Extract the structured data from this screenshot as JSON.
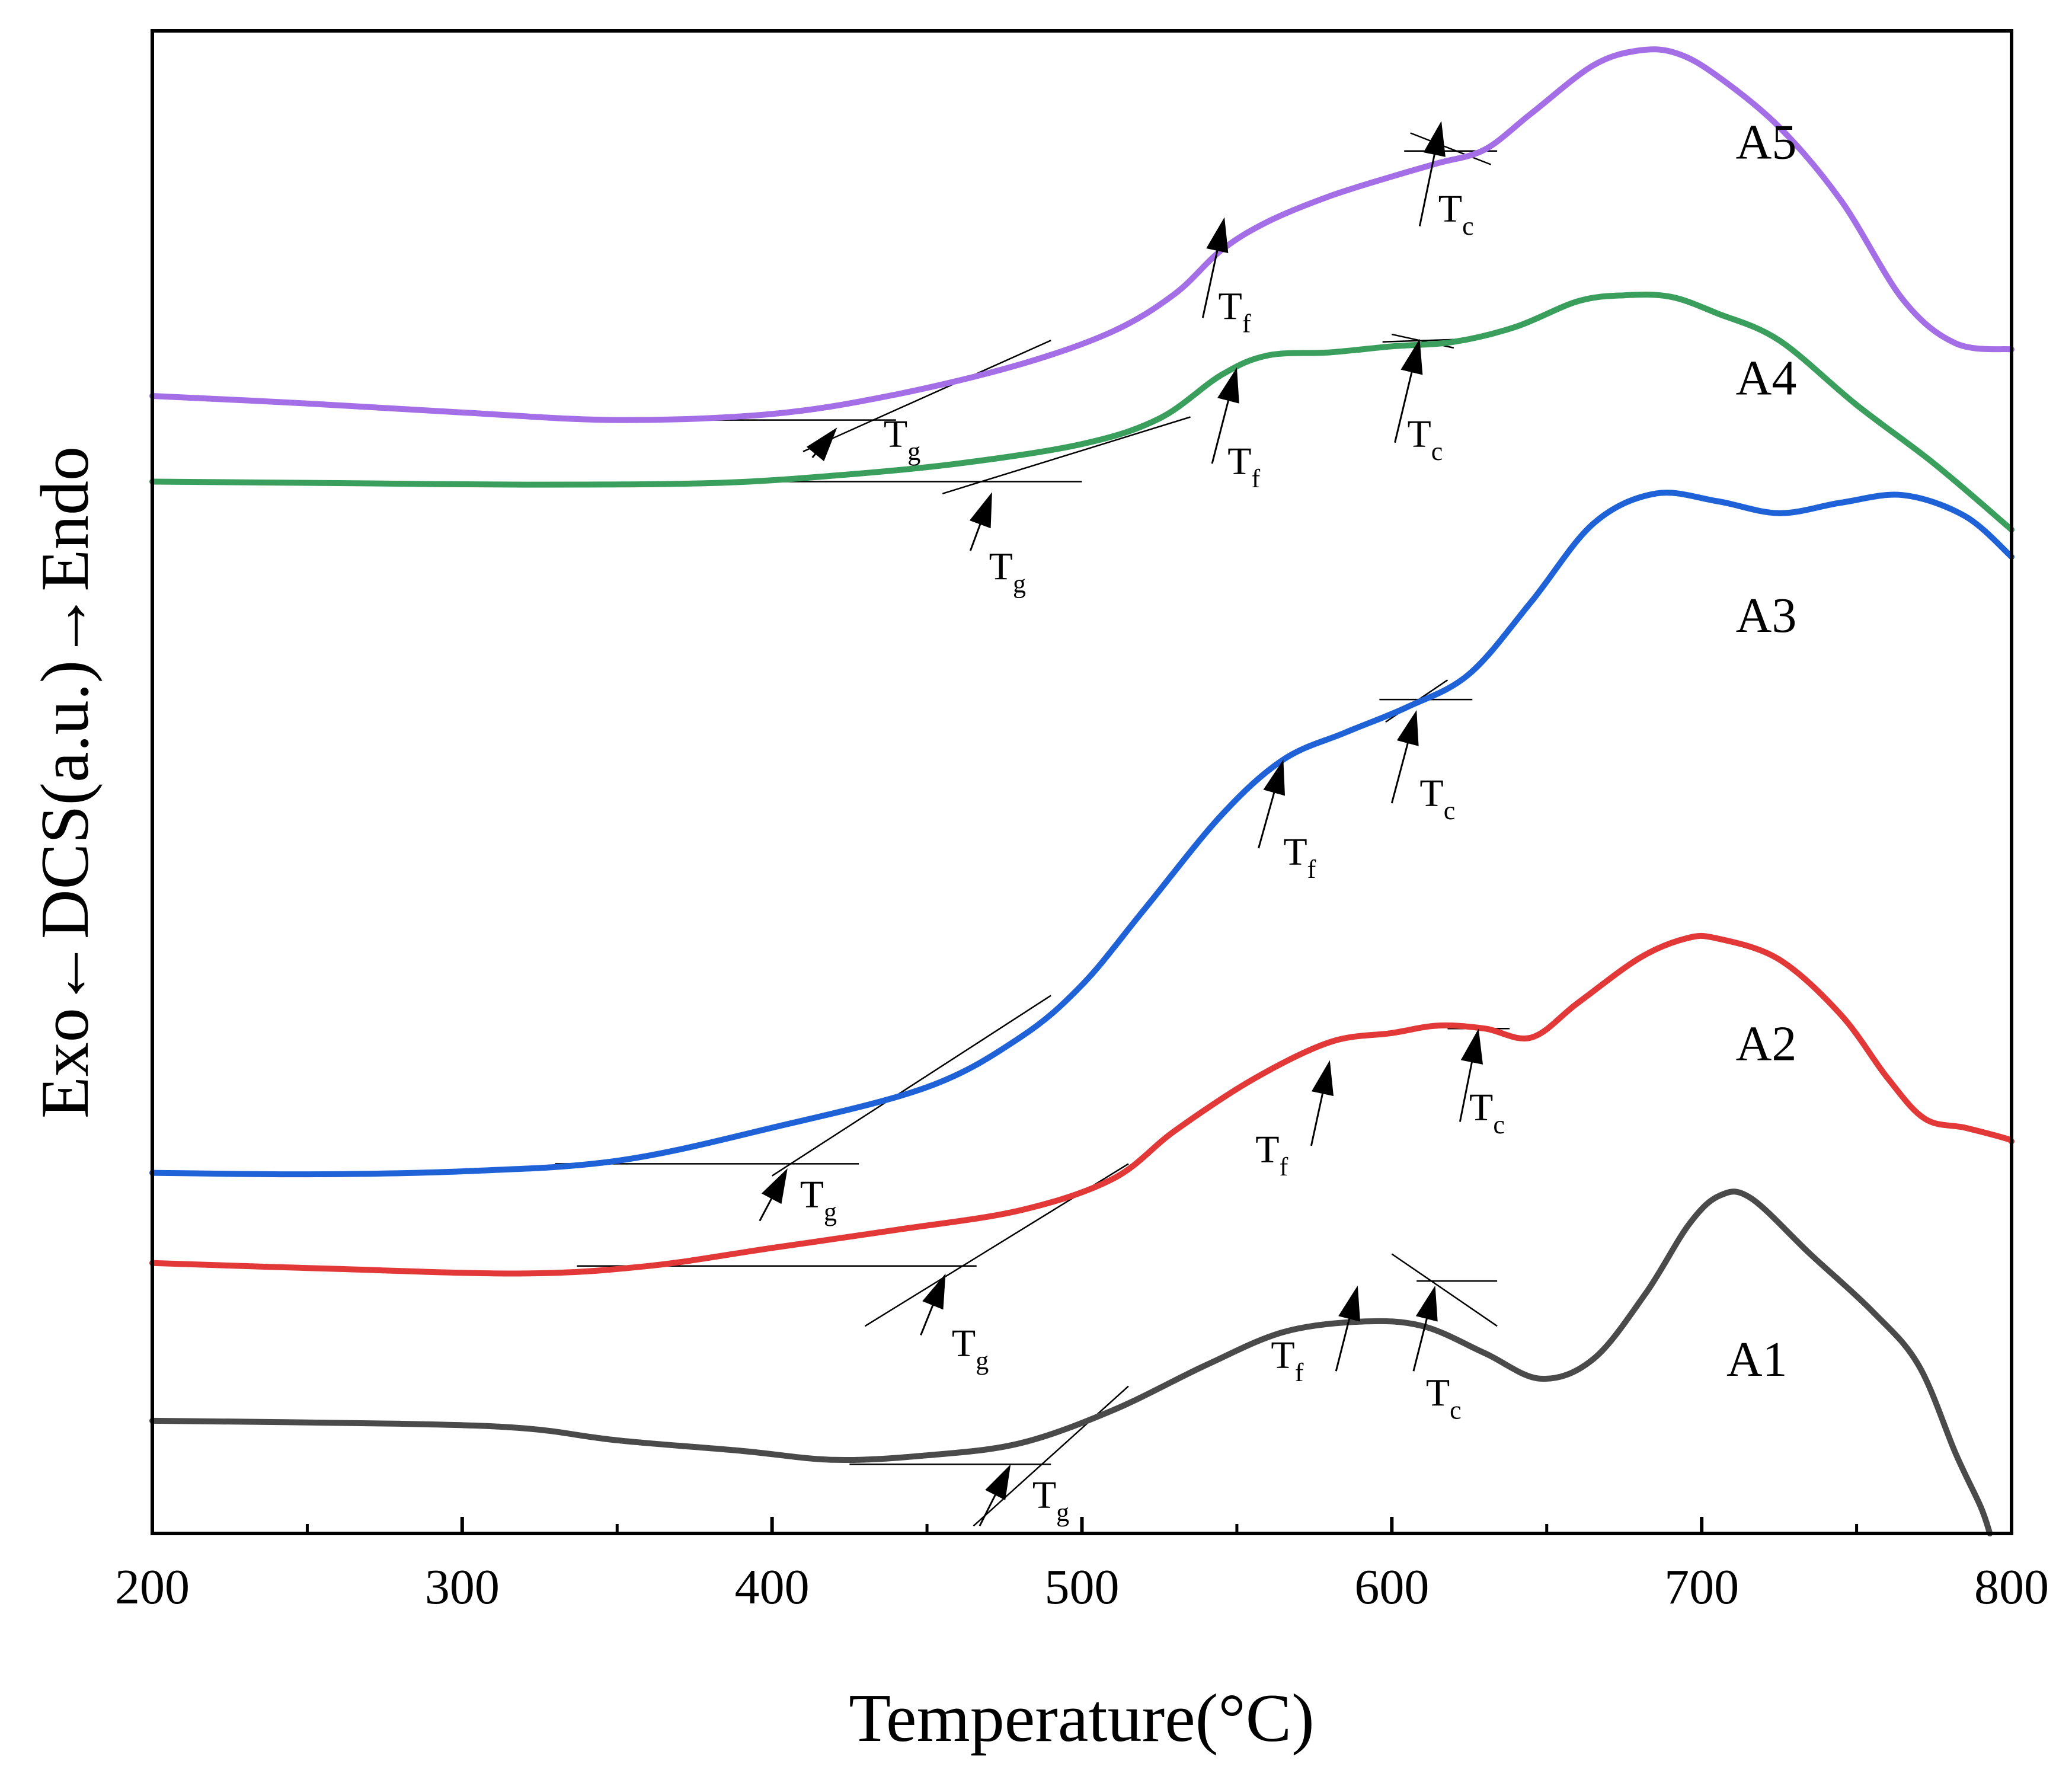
{
  "chart_data": {
    "type": "line",
    "title": "",
    "xlabel": "Temperature(°C)",
    "ylabel": "Exo←DCS(a.u.)→Endo",
    "xlim": [
      200,
      800
    ],
    "ylim": [
      0,
      100
    ],
    "xticks": [
      200,
      300,
      400,
      500,
      600,
      700,
      800
    ],
    "minor_xticks": [
      250,
      350,
      450,
      550,
      650,
      750
    ],
    "grid": false,
    "legend": "none",
    "series": [
      {
        "name": "A1",
        "color": "#4a4a4a",
        "label_at": [
          708,
          10.5
        ],
        "points": [
          [
            200,
            7.5
          ],
          [
            280,
            7.3
          ],
          [
            320,
            7.0
          ],
          [
            350,
            6.2
          ],
          [
            390,
            5.5
          ],
          [
            420,
            4.9
          ],
          [
            450,
            5.2
          ],
          [
            480,
            6.0
          ],
          [
            510,
            8.2
          ],
          [
            540,
            11.2
          ],
          [
            565,
            13.4
          ],
          [
            590,
            14.1
          ],
          [
            610,
            13.8
          ],
          [
            630,
            12.0
          ],
          [
            648,
            10.3
          ],
          [
            665,
            11.6
          ],
          [
            682,
            16.0
          ],
          [
            696,
            20.6
          ],
          [
            706,
            22.5
          ],
          [
            716,
            22.3
          ],
          [
            735,
            18.6
          ],
          [
            755,
            14.8
          ],
          [
            770,
            11.2
          ],
          [
            782,
            5.3
          ],
          [
            790,
            1.8
          ],
          [
            793,
            0
          ]
        ]
      },
      {
        "name": "A2",
        "color": "#e23838",
        "label_at": [
          711,
          31.5
        ],
        "points": [
          [
            200,
            18.0
          ],
          [
            260,
            17.6
          ],
          [
            320,
            17.3
          ],
          [
            360,
            17.8
          ],
          [
            400,
            19.0
          ],
          [
            440,
            20.2
          ],
          [
            480,
            21.5
          ],
          [
            510,
            23.6
          ],
          [
            530,
            26.8
          ],
          [
            555,
            30.2
          ],
          [
            580,
            32.7
          ],
          [
            600,
            33.3
          ],
          [
            615,
            33.8
          ],
          [
            630,
            33.6
          ],
          [
            645,
            33.0
          ],
          [
            660,
            35.3
          ],
          [
            680,
            38.3
          ],
          [
            695,
            39.6
          ],
          [
            705,
            39.6
          ],
          [
            725,
            38.2
          ],
          [
            745,
            34.5
          ],
          [
            760,
            30.3
          ],
          [
            772,
            27.6
          ],
          [
            785,
            27.0
          ],
          [
            798,
            26.3
          ],
          [
            800,
            26.1
          ]
        ]
      },
      {
        "name": "A3",
        "color": "#1f62d8",
        "label_at": [
          711,
          60.0
        ],
        "points": [
          [
            200,
            24.0
          ],
          [
            250,
            23.9
          ],
          [
            300,
            24.1
          ],
          [
            350,
            24.8
          ],
          [
            400,
            27.0
          ],
          [
            450,
            29.7
          ],
          [
            480,
            33.0
          ],
          [
            500,
            36.5
          ],
          [
            520,
            41.5
          ],
          [
            545,
            47.8
          ],
          [
            565,
            51.5
          ],
          [
            585,
            53.3
          ],
          [
            605,
            55.0
          ],
          [
            625,
            57.2
          ],
          [
            645,
            62.0
          ],
          [
            665,
            67.2
          ],
          [
            685,
            69.2
          ],
          [
            705,
            68.7
          ],
          [
            725,
            67.9
          ],
          [
            745,
            68.6
          ],
          [
            765,
            69.1
          ],
          [
            785,
            67.7
          ],
          [
            800,
            65.0
          ]
        ]
      },
      {
        "name": "A4",
        "color": "#3a9e5c",
        "label_at": [
          711,
          75.8
        ],
        "points": [
          [
            200,
            70.0
          ],
          [
            260,
            69.9
          ],
          [
            320,
            69.8
          ],
          [
            380,
            69.9
          ],
          [
            420,
            70.4
          ],
          [
            460,
            71.2
          ],
          [
            500,
            72.5
          ],
          [
            525,
            74.2
          ],
          [
            545,
            77.1
          ],
          [
            560,
            78.4
          ],
          [
            580,
            78.6
          ],
          [
            600,
            79.0
          ],
          [
            620,
            79.3
          ],
          [
            640,
            80.3
          ],
          [
            660,
            82.0
          ],
          [
            675,
            82.4
          ],
          [
            690,
            82.3
          ],
          [
            705,
            81.2
          ],
          [
            725,
            79.4
          ],
          [
            750,
            75.1
          ],
          [
            775,
            71.2
          ],
          [
            800,
            66.8
          ]
        ]
      },
      {
        "name": "A5",
        "color": "#a46ee6",
        "label_at": [
          711,
          91.5
        ],
        "points": [
          [
            200,
            75.7
          ],
          [
            250,
            75.2
          ],
          [
            300,
            74.6
          ],
          [
            350,
            74.1
          ],
          [
            400,
            74.5
          ],
          [
            440,
            75.8
          ],
          [
            480,
            77.8
          ],
          [
            510,
            80.0
          ],
          [
            530,
            82.5
          ],
          [
            545,
            85.4
          ],
          [
            560,
            87.3
          ],
          [
            580,
            89.0
          ],
          [
            600,
            90.3
          ],
          [
            615,
            91.2
          ],
          [
            630,
            92.1
          ],
          [
            645,
            94.5
          ],
          [
            665,
            97.7
          ],
          [
            680,
            98.7
          ],
          [
            692,
            98.5
          ],
          [
            705,
            97.0
          ],
          [
            725,
            93.6
          ],
          [
            745,
            88.7
          ],
          [
            765,
            82.1
          ],
          [
            782,
            79.2
          ],
          [
            800,
            78.8
          ]
        ]
      }
    ],
    "annotations": [
      {
        "series": "A1",
        "letter": "T",
        "sub": "g",
        "arrow_tip": [
          477,
          4.6
        ],
        "arrow_tail": [
          467,
          0.5
        ],
        "text_at": [
          484,
          1.7
        ],
        "guides": [
          [
            [
              425,
              4.6
            ],
            [
              490,
              4.6
            ]
          ],
          [
            [
              465,
              0.5
            ],
            [
              515,
              9.8
            ]
          ]
        ]
      },
      {
        "series": "A1",
        "letter": "T",
        "sub": "f",
        "arrow_tip": [
          589,
          16.5
        ],
        "arrow_tail": [
          582,
          10.8
        ],
        "text_at": [
          561,
          11.0
        ],
        "guides": []
      },
      {
        "series": "A1",
        "letter": "T",
        "sub": "c",
        "arrow_tip": [
          614,
          16.5
        ],
        "arrow_tail": [
          607,
          10.8
        ],
        "text_at": [
          611,
          8.5
        ],
        "guides": [
          [
            [
              608,
              16.8
            ],
            [
              634,
              16.8
            ]
          ],
          [
            [
              600,
              18.6
            ],
            [
              634,
              13.8
            ]
          ]
        ]
      },
      {
        "series": "A2",
        "letter": "T",
        "sub": "g",
        "arrow_tip": [
          456,
          17.3
        ],
        "arrow_tail": [
          448,
          13.2
        ],
        "text_at": [
          458,
          11.8
        ],
        "guides": [
          [
            [
              337,
              17.8
            ],
            [
              466,
              17.8
            ]
          ],
          [
            [
              430,
              13.8
            ],
            [
              515,
              24.6
            ]
          ]
        ]
      },
      {
        "series": "A2",
        "letter": "T",
        "sub": "f",
        "arrow_tip": [
          580,
          31.5
        ],
        "arrow_tail": [
          574,
          25.8
        ],
        "text_at": [
          556,
          24.7
        ],
        "guides": []
      },
      {
        "series": "A2",
        "letter": "T",
        "sub": "c",
        "arrow_tip": [
          628,
          33.6
        ],
        "arrow_tail": [
          622,
          27.4
        ],
        "text_at": [
          625,
          27.5
        ],
        "guides": [
          [
            [
              618,
              33.6
            ],
            [
              638,
              33.6
            ]
          ]
        ]
      },
      {
        "series": "A3",
        "letter": "T",
        "sub": "g",
        "arrow_tip": [
          405,
          24.3
        ],
        "arrow_tail": [
          396,
          20.8
        ],
        "text_at": [
          409,
          21.7
        ],
        "guides": [
          [
            [
              330,
              24.6
            ],
            [
              428,
              24.6
            ]
          ],
          [
            [
              400,
              23.8
            ],
            [
              490,
              35.8
            ]
          ]
        ]
      },
      {
        "series": "A3",
        "letter": "T",
        "sub": "f",
        "arrow_tip": [
          565,
          51.5
        ],
        "arrow_tail": [
          557,
          45.6
        ],
        "text_at": [
          565,
          44.5
        ],
        "guides": []
      },
      {
        "series": "A3",
        "letter": "T",
        "sub": "c",
        "arrow_tip": [
          608,
          54.8
        ],
        "arrow_tail": [
          600,
          48.6
        ],
        "text_at": [
          609,
          48.4
        ],
        "guides": [
          [
            [
              596,
              55.5
            ],
            [
              626,
              55.5
            ]
          ],
          [
            [
              598,
              54.0
            ],
            [
              618,
              56.8
            ]
          ]
        ]
      },
      {
        "series": "A4",
        "letter": "T",
        "sub": "g",
        "arrow_tip": [
          471,
          69.3
        ],
        "arrow_tail": [
          464,
          65.4
        ],
        "text_at": [
          470,
          63.5
        ],
        "guides": [
          [
            [
              395,
              70.0
            ],
            [
              500,
              70.0
            ]
          ],
          [
            [
              455,
              69.2
            ],
            [
              535,
              74.3
            ]
          ]
        ]
      },
      {
        "series": "A4",
        "letter": "T",
        "sub": "f",
        "arrow_tip": [
          550,
          77.6
        ],
        "arrow_tail": [
          542,
          71.2
        ],
        "text_at": [
          547,
          70.5
        ],
        "guides": []
      },
      {
        "series": "A4",
        "letter": "T",
        "sub": "c",
        "arrow_tip": [
          609,
          79.5
        ],
        "arrow_tail": [
          601,
          72.6
        ],
        "text_at": [
          605,
          72.3
        ],
        "guides": [
          [
            [
              597,
              79.3
            ],
            [
              627,
              79.5
            ]
          ],
          [
            [
              600,
              79.8
            ],
            [
              620,
              78.9
            ]
          ]
        ]
      },
      {
        "series": "A5",
        "letter": "T",
        "sub": "g",
        "arrow_tip": [
          421,
          73.6
        ],
        "arrow_tail": [
          413,
          71.6
        ],
        "text_at": [
          436,
          72.3
        ],
        "guides": [
          [
            [
              375,
              74.1
            ],
            [
              440,
              74.1
            ]
          ],
          [
            [
              410,
              72.0
            ],
            [
              490,
              79.4
            ]
          ]
        ]
      },
      {
        "series": "A5",
        "letter": "T",
        "sub": "f",
        "arrow_tip": [
          546,
          87.6
        ],
        "arrow_tail": [
          539,
          80.9
        ],
        "text_at": [
          544,
          80.8
        ],
        "guides": []
      },
      {
        "series": "A5",
        "letter": "T",
        "sub": "c",
        "arrow_tip": [
          616,
          94.0
        ],
        "arrow_tail": [
          609,
          87.0
        ],
        "text_at": [
          615,
          87.3
        ],
        "guides": [
          [
            [
              604,
              92.0
            ],
            [
              634,
              92.0
            ]
          ],
          [
            [
              606,
              93.2
            ],
            [
              632,
              91.1
            ]
          ]
        ]
      }
    ]
  }
}
